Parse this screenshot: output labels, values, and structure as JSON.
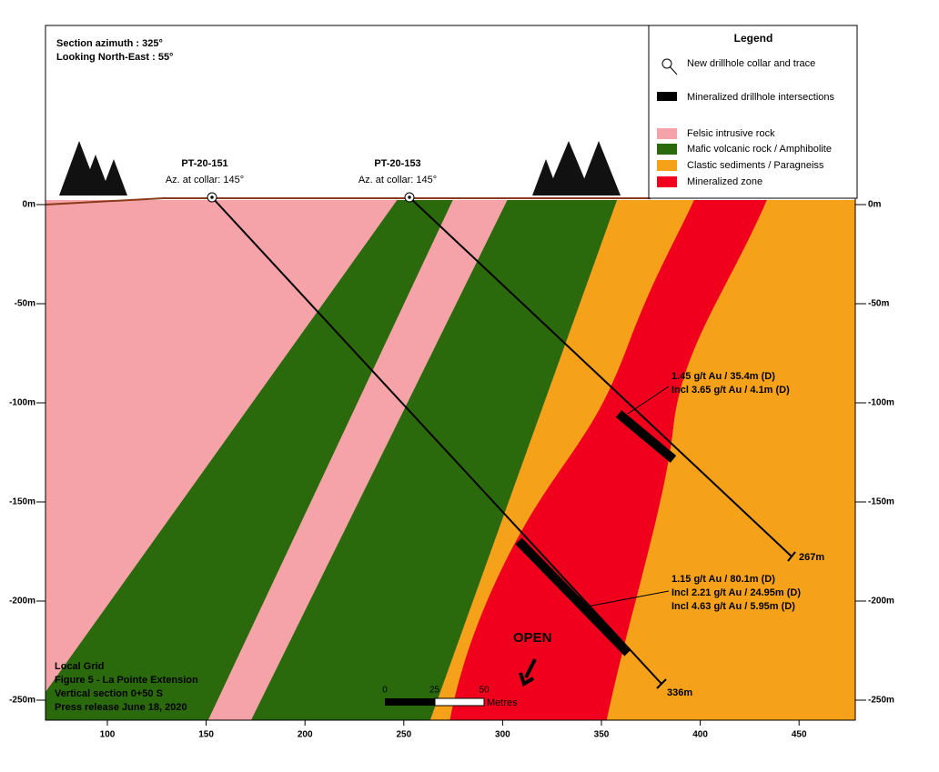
{
  "header": {
    "lines": [
      "Section azimuth : 325°",
      "Looking North-East : 55°"
    ]
  },
  "legend": {
    "title": "Legend",
    "items": [
      {
        "label": "New drillhole collar and trace"
      },
      {
        "label": "Mineralized drillhole intersections",
        "color": "#000000"
      },
      {
        "label": "Felsic intrusive rock",
        "color": "#f5a3a8"
      },
      {
        "label": "Mafic volcanic rock / Amphibolite",
        "color": "#2b6a0c"
      },
      {
        "label": "Clastic sediments / Paragneiss",
        "color": "#f5a11a"
      },
      {
        "label": "Mineralized zone",
        "color": "#f0001c"
      }
    ]
  },
  "drillholes": [
    {
      "name": "PT-20-151",
      "azimuth": "Az. at collar: 145°",
      "depth": "336m",
      "intercept": [
        "1.15 g/t Au / 80.1m (D)",
        "Incl 2.21 g/t Au / 24.95m (D)",
        "Incl 4.63 g/t Au / 5.95m (D)"
      ]
    },
    {
      "name": "PT-20-153",
      "azimuth": "Az. at collar: 145°",
      "depth": "267m",
      "intercept": [
        "1.45 g/t Au / 35.4m (D)",
        "Incl 3.65 g/t Au / 4.1m (D)"
      ]
    }
  ],
  "open_label": "OPEN",
  "scale_bar": {
    "ticks": [
      0,
      25,
      50
    ],
    "unit": "Metres"
  },
  "footer": [
    "Local Grid",
    "Figure 5 - La Pointe Extension",
    "Vertical section 0+50 S",
    "Press release June 18, 2020"
  ],
  "axes": {
    "x_ticks": [
      100,
      150,
      200,
      250,
      300,
      350,
      400,
      450
    ],
    "y_ticks": [
      {
        "value": 0,
        "label": "0m"
      },
      {
        "value": -50,
        "label": "-50m"
      },
      {
        "value": -100,
        "label": "-100m"
      },
      {
        "value": -150,
        "label": "-150m"
      },
      {
        "value": -200,
        "label": "-200m"
      },
      {
        "value": -250,
        "label": "-250m"
      }
    ]
  }
}
